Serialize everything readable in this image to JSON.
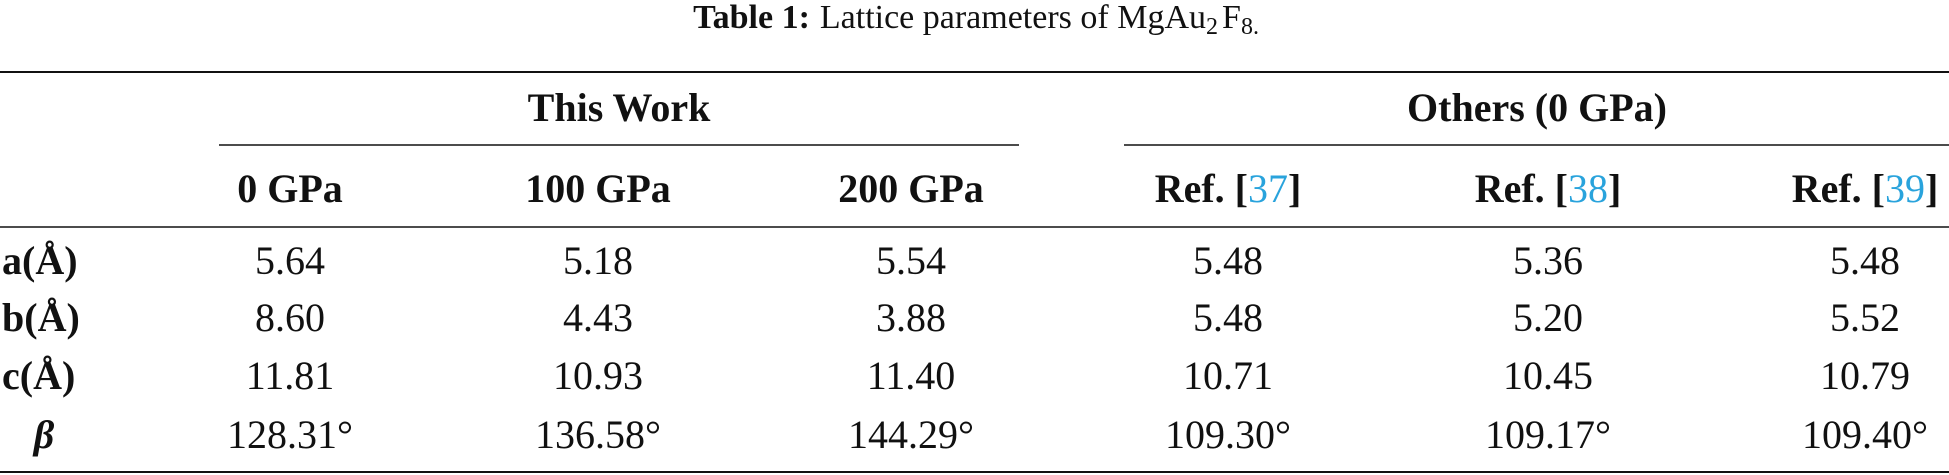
{
  "caption": {
    "label": "Table 1:",
    "text": "Lattice parameters of MgAu",
    "sub1": "2",
    "text2": "F",
    "sub2": "8."
  },
  "table": {
    "groups": [
      "This Work",
      "Others (0 GPa)"
    ],
    "columns": [
      {
        "text": "0 GPa"
      },
      {
        "text": "100 GPa"
      },
      {
        "text": "200 GPa"
      },
      {
        "prefix": "Ref. [",
        "ref": "37",
        "suffix": "]"
      },
      {
        "prefix": "Ref. [",
        "ref": "38",
        "suffix": "]"
      },
      {
        "prefix": "Ref. [",
        "ref": "39",
        "suffix": "]"
      }
    ],
    "rows": [
      {
        "label": "a(Å)",
        "cells": [
          "5.64",
          "5.18",
          "5.54",
          "5.48",
          "5.36",
          "5.48"
        ]
      },
      {
        "label": "b(Å)",
        "cells": [
          "8.60",
          "4.43",
          "3.88",
          "5.48",
          "5.20",
          "5.52"
        ]
      },
      {
        "label": "c(Å)",
        "cells": [
          "11.81",
          "10.93",
          "11.40",
          "10.71",
          "10.45",
          "10.79"
        ]
      },
      {
        "label": "β",
        "cells": [
          "128.31°",
          "136.58°",
          "144.29°",
          "109.30°",
          "109.17°",
          "109.40°"
        ]
      }
    ]
  }
}
